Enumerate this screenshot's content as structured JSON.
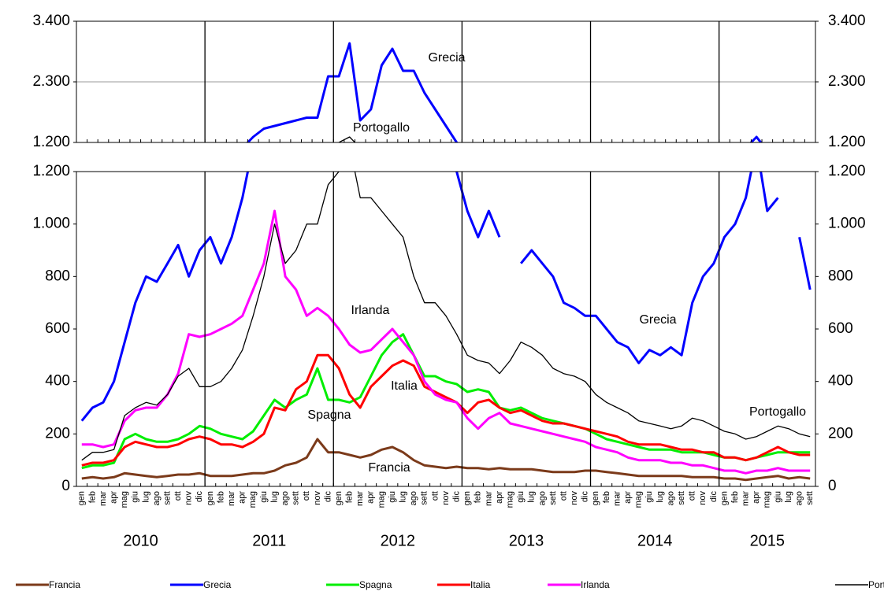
{
  "chart_data": {
    "type": "line",
    "categories": [
      "gen",
      "feb",
      "mar",
      "apr",
      "mag",
      "giu",
      "lug",
      "ago",
      "sett",
      "ott",
      "nov",
      "dic",
      "gen",
      "feb",
      "mar",
      "apr",
      "mag",
      "giu",
      "lug",
      "ago",
      "sett",
      "ott",
      "nov",
      "dic",
      "gen",
      "feb",
      "mar",
      "apr",
      "mag",
      "giu",
      "lug",
      "ago",
      "sett",
      "ott",
      "nov",
      "dic",
      "gen",
      "feb",
      "mar",
      "apr",
      "mag",
      "giu",
      "lug",
      "ago",
      "sett",
      "ott",
      "nov",
      "dic",
      "gen",
      "feb",
      "mar",
      "apr",
      "mag",
      "giu",
      "lug",
      "ago",
      "sett",
      "ott",
      "nov",
      "dic",
      "gen",
      "feb",
      "mar",
      "apr",
      "mag",
      "giu",
      "lug",
      "ago",
      "sett"
    ],
    "years": [
      "2010",
      "2011",
      "2012",
      "2013",
      "2014",
      "2015"
    ],
    "panels": [
      {
        "ylim": [
          1200,
          3400
        ],
        "yticks": [
          {
            "value": 1200,
            "label": "1.200"
          },
          {
            "value": 2300,
            "label": "2.300"
          },
          {
            "value": 3400,
            "label": "3.400"
          }
        ],
        "grid": true
      },
      {
        "ylim": [
          0,
          1200
        ],
        "yticks": [
          0,
          200,
          400,
          600,
          800,
          {
            "value": 1000,
            "label": "1.000"
          },
          {
            "value": 1200,
            "label": "1.200"
          }
        ],
        "grid": false
      }
    ],
    "series": [
      {
        "name": "Francia",
        "color": "#7b3a1a",
        "values": [
          30,
          35,
          30,
          35,
          50,
          45,
          40,
          35,
          40,
          45,
          45,
          50,
          40,
          40,
          40,
          45,
          50,
          50,
          60,
          80,
          90,
          110,
          180,
          130,
          130,
          120,
          110,
          120,
          140,
          150,
          130,
          100,
          80,
          75,
          70,
          75,
          70,
          70,
          65,
          70,
          65,
          65,
          65,
          60,
          55,
          55,
          55,
          60,
          60,
          55,
          50,
          45,
          40,
          40,
          40,
          40,
          40,
          35,
          35,
          35,
          30,
          30,
          25,
          30,
          35,
          40,
          30,
          35,
          30
        ]
      },
      {
        "name": "Grecia",
        "color": "#0000ff",
        "values": [
          250,
          300,
          320,
          400,
          550,
          700,
          800,
          780,
          850,
          920,
          800,
          900,
          950,
          850,
          950,
          1100,
          1300,
          1450,
          1500,
          1550,
          1600,
          1650,
          1650,
          2400,
          2400,
          3000,
          1600,
          1800,
          2600,
          2900,
          2500,
          2500,
          2100,
          1800,
          1500,
          1200,
          1050,
          950,
          1050,
          950,
          null,
          850,
          900,
          850,
          800,
          700,
          680,
          650,
          650,
          600,
          550,
          530,
          470,
          520,
          500,
          530,
          500,
          700,
          800,
          850,
          950,
          1000,
          1100,
          1300,
          1050,
          1100,
          null,
          950,
          750
        ]
      },
      {
        "name": "Spagna",
        "color": "#00ee00",
        "values": [
          70,
          80,
          80,
          90,
          180,
          200,
          180,
          170,
          170,
          180,
          200,
          230,
          220,
          200,
          190,
          180,
          210,
          270,
          330,
          300,
          330,
          350,
          450,
          330,
          330,
          320,
          340,
          420,
          500,
          550,
          580,
          500,
          420,
          420,
          400,
          390,
          360,
          370,
          360,
          300,
          290,
          300,
          280,
          260,
          250,
          240,
          230,
          220,
          200,
          180,
          170,
          160,
          150,
          140,
          140,
          140,
          130,
          130,
          130,
          120,
          110,
          110,
          100,
          110,
          120,
          130,
          130,
          130,
          130
        ]
      },
      {
        "name": "Italia",
        "color": "#ff0000",
        "values": [
          80,
          90,
          90,
          100,
          150,
          170,
          160,
          150,
          150,
          160,
          180,
          190,
          180,
          160,
          160,
          150,
          170,
          200,
          300,
          290,
          370,
          400,
          500,
          500,
          450,
          350,
          300,
          380,
          420,
          460,
          480,
          460,
          380,
          360,
          340,
          320,
          280,
          320,
          330,
          300,
          280,
          290,
          270,
          250,
          240,
          240,
          230,
          220,
          210,
          200,
          190,
          170,
          160,
          160,
          160,
          150,
          140,
          140,
          130,
          130,
          110,
          110,
          100,
          110,
          130,
          150,
          130,
          120,
          120
        ]
      },
      {
        "name": "Irlanda",
        "color": "#ff00ff",
        "values": [
          160,
          160,
          150,
          160,
          250,
          290,
          300,
          300,
          350,
          430,
          580,
          570,
          580,
          600,
          620,
          650,
          750,
          850,
          1050,
          800,
          750,
          650,
          680,
          650,
          600,
          540,
          510,
          520,
          560,
          600,
          550,
          500,
          400,
          350,
          330,
          320,
          260,
          220,
          260,
          280,
          240,
          230,
          220,
          210,
          200,
          190,
          180,
          170,
          150,
          140,
          130,
          110,
          100,
          100,
          100,
          90,
          90,
          80,
          80,
          70,
          60,
          60,
          50,
          60,
          60,
          70,
          60,
          60,
          60
        ]
      },
      {
        "name": "Portogallo",
        "color": "#000000",
        "values": [
          100,
          130,
          130,
          140,
          270,
          300,
          320,
          310,
          350,
          420,
          450,
          380,
          380,
          400,
          450,
          520,
          650,
          800,
          1000,
          850,
          900,
          1000,
          1000,
          1150,
          1200,
          1300,
          1100,
          1100,
          1050,
          1000,
          950,
          800,
          700,
          700,
          650,
          580,
          500,
          480,
          470,
          430,
          480,
          550,
          530,
          500,
          450,
          430,
          420,
          400,
          350,
          320,
          300,
          280,
          250,
          240,
          230,
          220,
          230,
          260,
          250,
          230,
          210,
          200,
          180,
          190,
          210,
          230,
          220,
          200,
          190
        ]
      }
    ],
    "annotations": [
      "Grecia",
      "Portogallo",
      "Irlanda",
      "Grecia",
      "Italia",
      "Spagna",
      "Francia",
      "Portogallo"
    ]
  }
}
